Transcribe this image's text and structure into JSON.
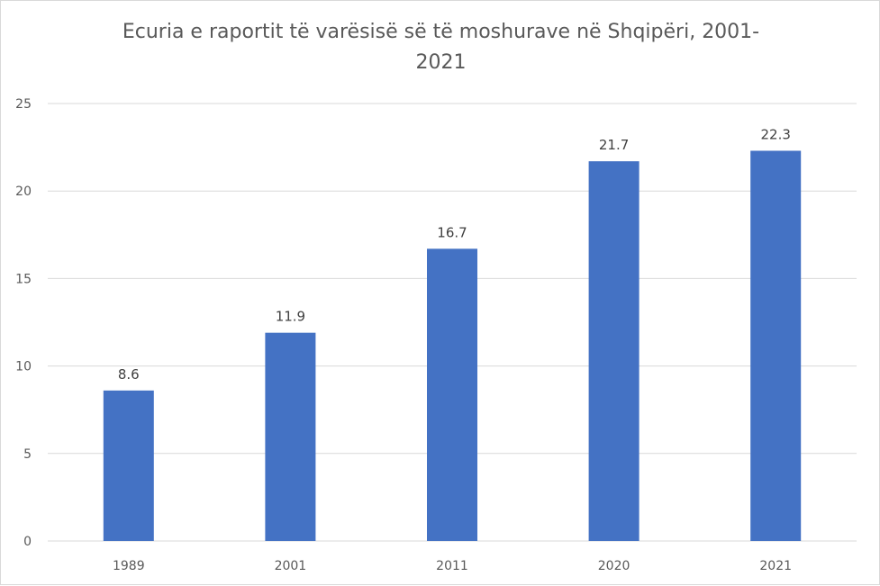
{
  "chart_data": {
    "type": "bar",
    "title": "Ecuria e raportit të varësisë së të moshurave në Shqipëri, 2001-2021",
    "title_lines": [
      "Ecuria e raportit të varësisë së të moshurave në Shqipëri, 2001-",
      "2021"
    ],
    "categories": [
      "1989",
      "2001",
      "2011",
      "2020",
      "2021"
    ],
    "values": [
      8.6,
      11.9,
      16.7,
      21.7,
      22.3
    ],
    "data_labels": [
      "8.6",
      "11.9",
      "16.7",
      "21.7",
      "22.3"
    ],
    "yticks": [
      "0",
      "5",
      "10",
      "15",
      "20",
      "25"
    ],
    "ylim": [
      0,
      25
    ],
    "grid": true,
    "legend": "none",
    "bar_color": "#4472c4",
    "grid_color": "#d9d9d9"
  }
}
